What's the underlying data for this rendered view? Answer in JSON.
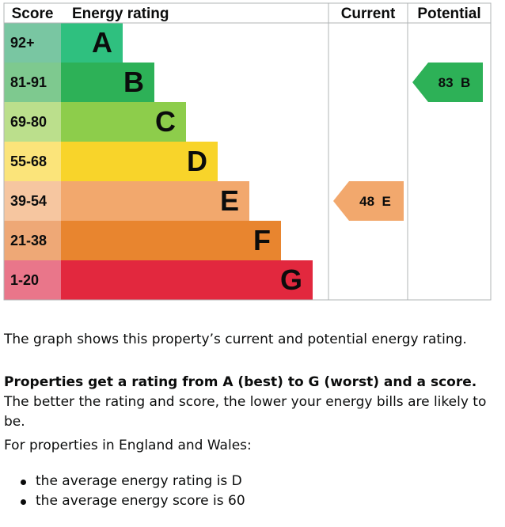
{
  "chart_data": {
    "type": "table",
    "headers": {
      "score": "Score",
      "rating": "Energy rating",
      "current": "Current",
      "potential": "Potential"
    },
    "bands": [
      {
        "letter": "A",
        "range": "92+",
        "color": "#2fc07f",
        "score_color": "#79c6a2"
      },
      {
        "letter": "B",
        "range": "81-91",
        "color": "#2db157",
        "score_color": "#7ec98f"
      },
      {
        "letter": "C",
        "range": "69-80",
        "color": "#8dcd4b",
        "score_color": "#bbdf8c"
      },
      {
        "letter": "D",
        "range": "55-68",
        "color": "#f8d42a",
        "score_color": "#fbe47a"
      },
      {
        "letter": "E",
        "range": "39-54",
        "color": "#f2a86d",
        "score_color": "#f6c6a0"
      },
      {
        "letter": "F",
        "range": "21-38",
        "color": "#e8852f",
        "score_color": "#eea876"
      },
      {
        "letter": "G",
        "range": "1-20",
        "color": "#e2283e",
        "score_color": "#e9768a"
      }
    ],
    "current": {
      "score": 48,
      "letter": "E",
      "label": "48  E",
      "color": "#f2a86d"
    },
    "potential": {
      "score": 83,
      "letter": "B",
      "label": "83  B",
      "color": "#2db157"
    }
  },
  "text": {
    "p1": "The graph shows this property’s current and potential energy rating.",
    "p2_bold": "Properties get a rating from A (best) to G (worst) and a score.",
    "p2_rest": " The better the rating and score, the lower your energy bills are likely to be.",
    "p3": "For properties in England and Wales:",
    "bullets": [
      "the average energy rating is D",
      "the average energy score is 60"
    ]
  }
}
